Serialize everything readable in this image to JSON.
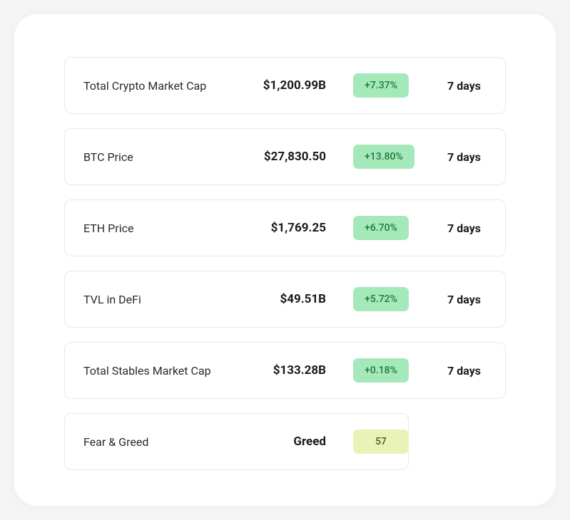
{
  "theme": {
    "card_bg": "#ffffff",
    "card_radius": 32,
    "row_border": "#e8e8e8",
    "row_radius": 10,
    "label_color": "#2a2a2a",
    "value_color": "#1a1a1a",
    "badge_green_bg": "#a5e8b9",
    "badge_green_fg": "#1f7a3e",
    "badge_yellow_bg": "#eaf2b8",
    "badge_yellow_fg": "#4a5a2a",
    "label_fontsize": 16,
    "value_fontsize": 17,
    "badge_fontsize": 14,
    "period_fontsize": 16
  },
  "metrics": [
    {
      "label": "Total Crypto Market Cap",
      "value": "$1,200.99B",
      "change": "+7.37%",
      "badge_style": "green",
      "period": "7 days"
    },
    {
      "label": "BTC Price",
      "value": "$27,830.50",
      "change": "+13.80%",
      "badge_style": "green",
      "period": "7 days"
    },
    {
      "label": "ETH Price",
      "value": "$1,769.25",
      "change": "+6.70%",
      "badge_style": "green",
      "period": "7 days"
    },
    {
      "label": "TVL in DeFi",
      "value": "$49.51B",
      "change": "+5.72%",
      "badge_style": "green",
      "period": "7 days"
    },
    {
      "label": "Total Stables Market Cap",
      "value": "$133.28B",
      "change": "+0.18%",
      "badge_style": "green",
      "period": "7 days"
    }
  ],
  "fear_greed": {
    "label": "Fear & Greed",
    "value": "Greed",
    "score": "57",
    "badge_style": "yellow"
  }
}
